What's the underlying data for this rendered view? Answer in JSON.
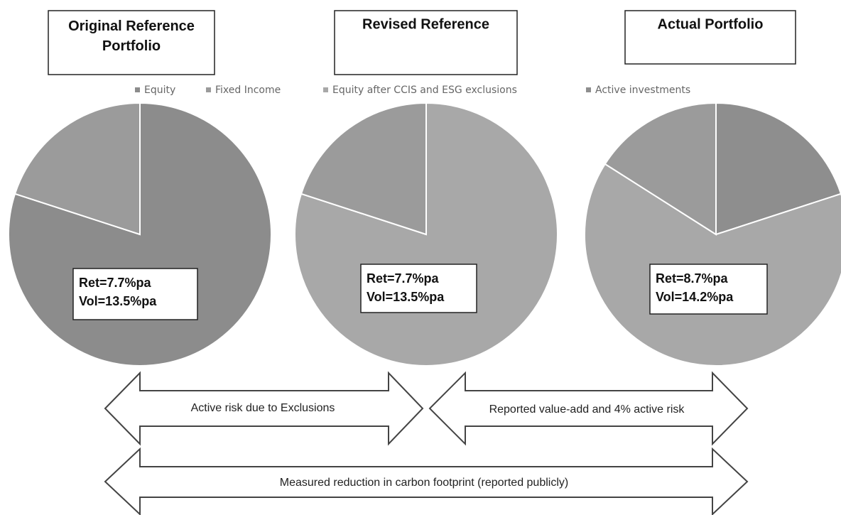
{
  "chart_data": {
    "type": "pie",
    "categories": [
      "Equity",
      "Fixed Income",
      "Equity after CCIS and ESG exclusions",
      "Active investments"
    ],
    "colors": [
      "#8c8c8c",
      "#9b9b9b",
      "#a8a8a8",
      "#8e8e8e"
    ],
    "pies": [
      {
        "title": "Original Reference Portfolio",
        "values": [
          80,
          20,
          null,
          null
        ],
        "annotation": [
          "Ret=7.7%pa",
          "Vol=13.5%pa"
        ]
      },
      {
        "title": "Revised Reference",
        "values": [
          null,
          20,
          80,
          null
        ],
        "annotation": [
          "Ret=7.7%pa",
          "Vol=13.5%pa"
        ]
      },
      {
        "title": "Actual Portfolio",
        "values": [
          null,
          16,
          64,
          20
        ],
        "annotation": [
          "Ret=8.7%pa",
          "Vol=14.2%pa"
        ]
      }
    ],
    "arrows": [
      "Active risk due to Exclusions",
      "Reported value-add and 4% active risk",
      "Measured reduction in carbon footprint (reported publicly)"
    ]
  }
}
